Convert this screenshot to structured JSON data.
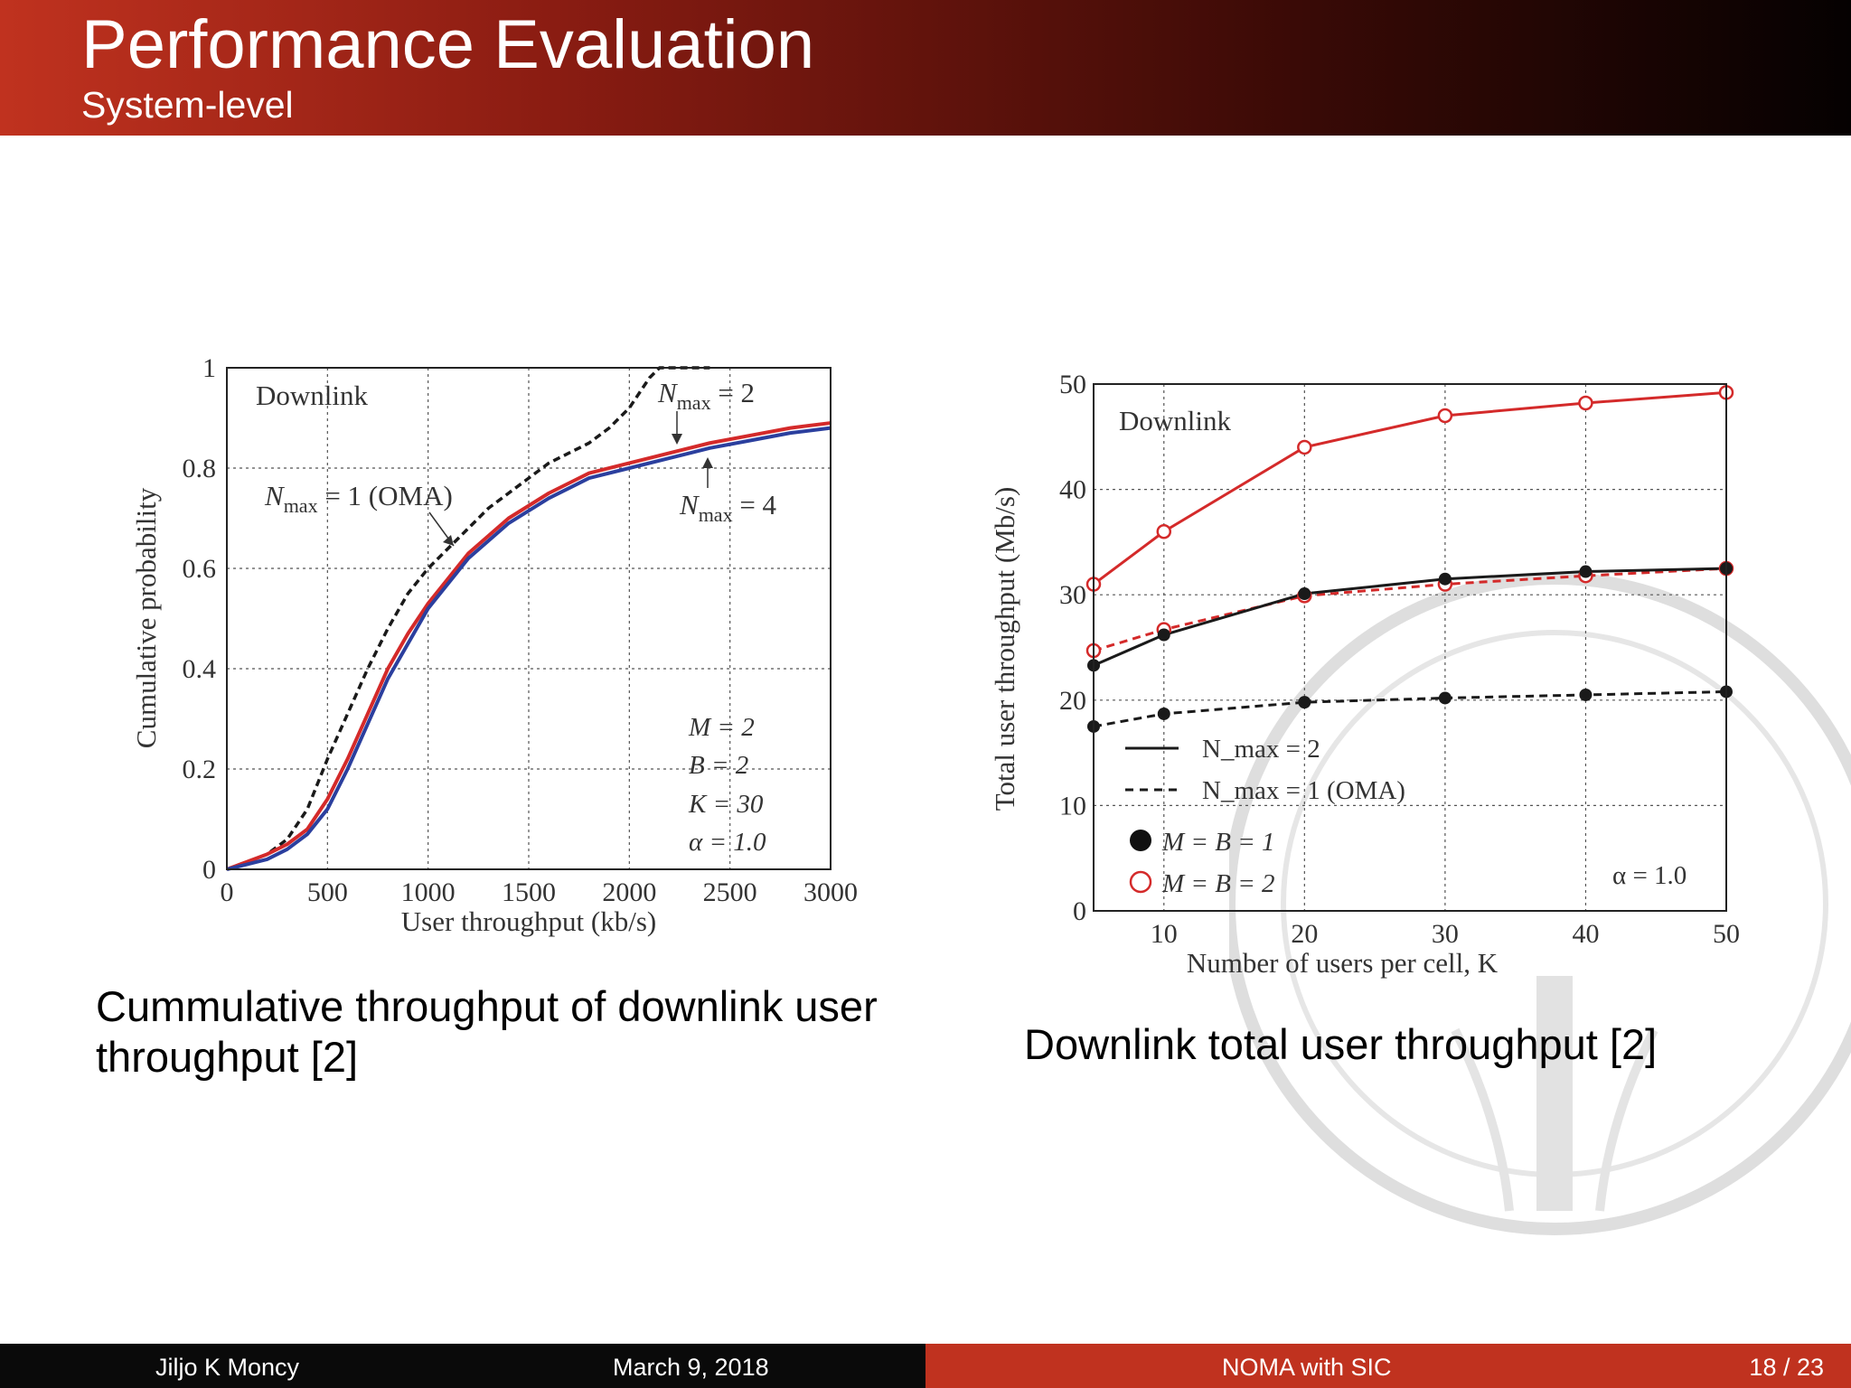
{
  "slide": {
    "title": "Performance Evaluation",
    "subtitle": "System-level",
    "caption_left": "Cummulative throughput of downlink user throughput [2]",
    "caption_right": "Downlink total user throughput [2]"
  },
  "footer": {
    "author": "Jiljo K Moncy",
    "date": "March 9, 2018",
    "talk_title": "NOMA with SIC",
    "page": "18 / 23"
  },
  "colors": {
    "header_start": "#c0321f",
    "header_end": "#050101",
    "footer_dark": "#0a0a0a",
    "footer_accent": "#c0321f",
    "series_red": "#d42a2a",
    "series_blue": "#2b3f9e",
    "series_black": "#1a1a1a"
  },
  "chart_data": [
    {
      "type": "line",
      "title": "",
      "xlabel": "User throughput (kb/s)",
      "ylabel": "Cumulative probability",
      "xlim": [
        0,
        3000
      ],
      "ylim": [
        0,
        1
      ],
      "xticks": [
        0,
        500,
        1000,
        1500,
        2000,
        2500,
        3000
      ],
      "yticks": [
        0,
        0.2,
        0.4,
        0.6,
        0.8,
        1
      ],
      "ytick_labels": [
        "0",
        "0.2",
        "0.4",
        "0.6",
        "0.8",
        "1"
      ],
      "grid": true,
      "annotations": {
        "panel": "Downlink",
        "params": [
          "M = 2",
          "B = 2",
          "K = 30",
          "α = 1.0"
        ]
      },
      "series": [
        {
          "name": "N_max = 1 (OMA)",
          "label_main": "N",
          "label_sub": "max",
          "label_rest": " = 1 (OMA)",
          "color": "#1a1a1a",
          "style": "dashed",
          "x": [
            0,
            200,
            300,
            400,
            500,
            600,
            700,
            800,
            900,
            1000,
            1100,
            1200,
            1300,
            1400,
            1500,
            1600,
            1700,
            1800,
            1900,
            2000,
            2050,
            2100,
            2150,
            2200,
            2300,
            2400
          ],
          "y": [
            0,
            0.03,
            0.06,
            0.12,
            0.22,
            0.31,
            0.4,
            0.48,
            0.55,
            0.6,
            0.64,
            0.68,
            0.72,
            0.75,
            0.78,
            0.81,
            0.83,
            0.85,
            0.88,
            0.92,
            0.95,
            0.98,
            1.0,
            1.0,
            1.0,
            1.0
          ]
        },
        {
          "name": "N_max = 2",
          "label_main": "N",
          "label_sub": "max",
          "label_rest": " = 2",
          "color": "#d42a2a",
          "style": "solid",
          "x": [
            0,
            200,
            300,
            400,
            500,
            600,
            700,
            800,
            900,
            1000,
            1100,
            1200,
            1400,
            1600,
            1800,
            2000,
            2200,
            2400,
            2600,
            2800,
            3000
          ],
          "y": [
            0,
            0.03,
            0.05,
            0.08,
            0.14,
            0.22,
            0.31,
            0.4,
            0.47,
            0.53,
            0.58,
            0.63,
            0.7,
            0.75,
            0.79,
            0.81,
            0.83,
            0.85,
            0.865,
            0.88,
            0.89
          ]
        },
        {
          "name": "N_max = 4",
          "label_main": "N",
          "label_sub": "max",
          "label_rest": " = 4",
          "color": "#2b3f9e",
          "style": "solid",
          "x": [
            0,
            200,
            300,
            400,
            500,
            600,
            700,
            800,
            900,
            1000,
            1100,
            1200,
            1400,
            1600,
            1800,
            2000,
            2200,
            2400,
            2600,
            2800,
            3000
          ],
          "y": [
            0,
            0.02,
            0.04,
            0.07,
            0.12,
            0.2,
            0.29,
            0.38,
            0.45,
            0.52,
            0.57,
            0.62,
            0.69,
            0.74,
            0.78,
            0.8,
            0.82,
            0.84,
            0.855,
            0.87,
            0.88
          ]
        }
      ]
    },
    {
      "type": "line",
      "title": "",
      "xlabel": "Number of users per cell, K",
      "ylabel": "Total user throughput (Mb/s)",
      "xlim": [
        5,
        50
      ],
      "ylim": [
        0,
        50
      ],
      "xticks": [
        10,
        20,
        30,
        40,
        50
      ],
      "yticks": [
        0,
        10,
        20,
        30,
        40,
        50
      ],
      "grid": true,
      "legend_position": "bottom-left",
      "legend": {
        "line_solid": "N_max = 2",
        "line_dashed": "N_max = 1 (OMA)",
        "marker_filled": "M = B = 1",
        "marker_open": "M = B = 2"
      },
      "annotations": {
        "panel": "Downlink",
        "alpha": "α = 1.0"
      },
      "x": [
        5,
        10,
        20,
        30,
        40,
        50
      ],
      "series": [
        {
          "name": "N_max = 2, M = B = 2",
          "color": "#d42a2a",
          "style": "solid",
          "marker": "open",
          "values": [
            31,
            36,
            44,
            47,
            48.2,
            49.2
          ]
        },
        {
          "name": "N_max = 1 (OMA), M = B = 2",
          "color": "#d42a2a",
          "style": "dashed",
          "marker": "open",
          "values": [
            24.7,
            26.7,
            29.9,
            31,
            31.8,
            32.5
          ]
        },
        {
          "name": "N_max = 2, M = B = 1",
          "color": "#1a1a1a",
          "style": "solid",
          "marker": "filled",
          "values": [
            23.3,
            26.2,
            30.1,
            31.5,
            32.2,
            32.5
          ]
        },
        {
          "name": "N_max = 1 (OMA), M = B = 1",
          "color": "#1a1a1a",
          "style": "dashed",
          "marker": "filled",
          "values": [
            17.5,
            18.7,
            19.8,
            20.2,
            20.5,
            20.8
          ]
        }
      ]
    }
  ]
}
